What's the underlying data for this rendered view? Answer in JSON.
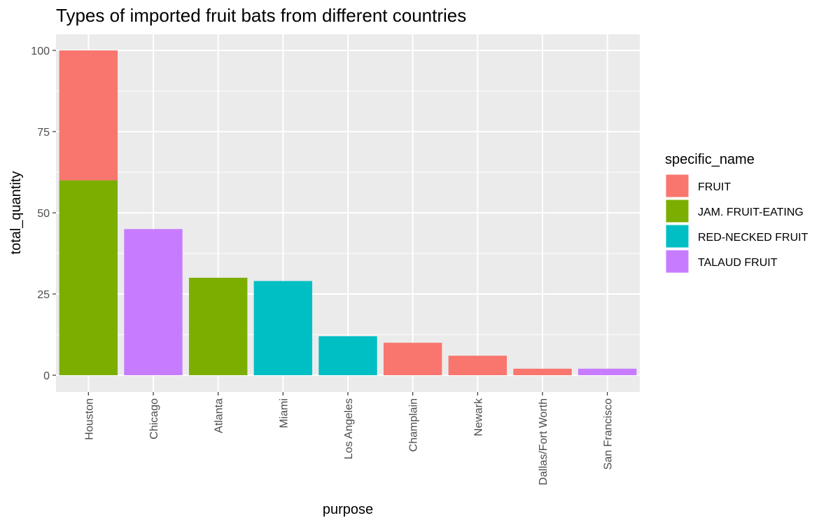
{
  "chart_data": {
    "type": "bar",
    "stacked": true,
    "title": "Types of imported fruit bats from different countries",
    "xlabel": "purpose",
    "ylabel": "total_quantity",
    "ylim": [
      0,
      108
    ],
    "yticks": [
      0,
      25,
      50,
      75,
      100
    ],
    "grid": true,
    "legend": {
      "title": "specific_name",
      "position": "right"
    },
    "categories": [
      "Houston",
      "Chicago",
      "Atlanta",
      "Miami",
      "Los Angeles",
      "Champlain",
      "Newark",
      "Dallas/Fort Worth",
      "San Francisco"
    ],
    "series": [
      {
        "name": "FRUIT",
        "color": "#F8766D",
        "values": [
          40,
          0,
          0,
          0,
          0,
          10,
          6,
          2,
          0
        ]
      },
      {
        "name": "JAM. FRUIT-EATING",
        "color": "#7CAE00",
        "values": [
          60,
          0,
          30,
          0,
          0,
          0,
          0,
          0,
          0
        ]
      },
      {
        "name": "RED-NECKED FRUIT",
        "color": "#00BFC4",
        "values": [
          0,
          0,
          0,
          29,
          12,
          0,
          0,
          0,
          0
        ]
      },
      {
        "name": "TALAUD FRUIT",
        "color": "#C77CFF",
        "values": [
          0,
          45,
          0,
          0,
          0,
          0,
          0,
          0,
          2
        ]
      }
    ]
  }
}
